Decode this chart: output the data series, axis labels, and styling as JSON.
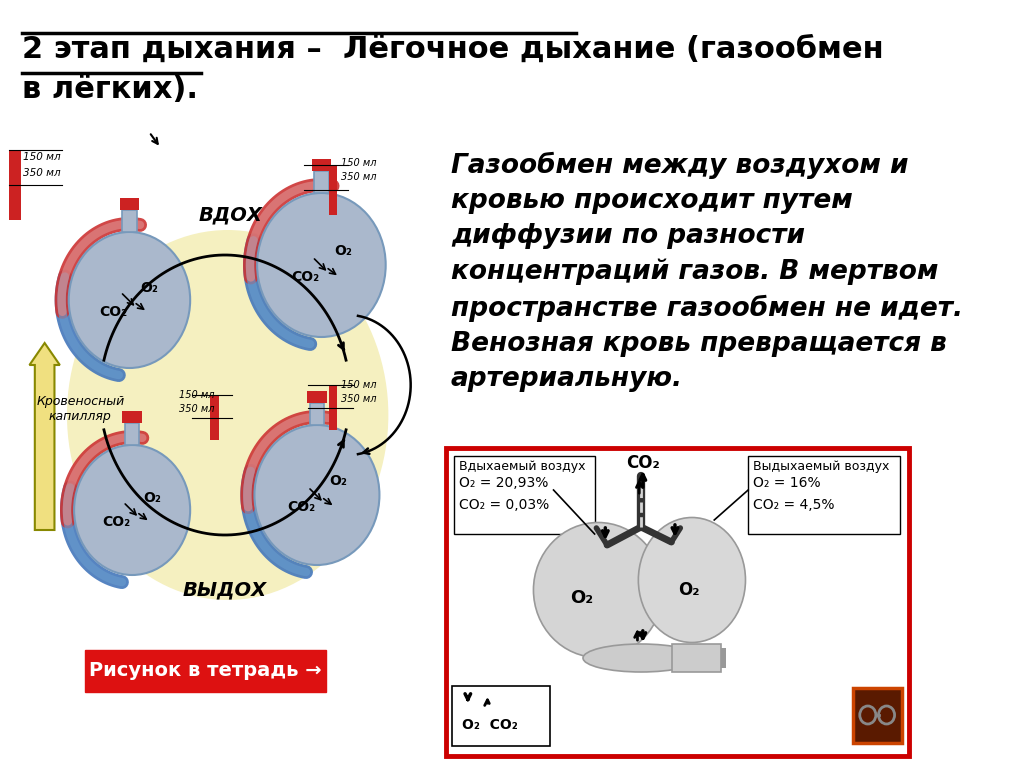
{
  "title_line1": "2 этап дыхания –  Лёгочное дыхание (газообмен",
  "title_line2": "в лёгких).",
  "bg_color": "#ffffff",
  "text_color": "#000000",
  "title_fontsize": 22,
  "body_text": "Газообмен между воздухом и\nкровью происходит путем\nдиффузии по разности\nконцентраций газов. В мертвом\nпространстве газообмен не идет.\nВенозная кровь превращается в\nартериальную.",
  "body_fontsize": 19,
  "inhale_label": "ВДОХ",
  "exhale_label": "ВЫДОХ",
  "capillary_label": "Кровеносный\nкапилляр",
  "button_text": "Рисунок в тетрадь →",
  "inhaled_air_label": "Вдыхаемый воздух",
  "inhaled_o2": "O₂ = 20,93%",
  "inhaled_co2": "CO₂ = 0,03%",
  "exhaled_air_label": "Выдыхаемый воздух",
  "exhaled_o2": "O₂ = 16%",
  "exhaled_co2": "CO₂ = 4,5%",
  "alveoli_color": "#aab8cc",
  "red_border": "#cc0000",
  "red_box_color": "#dd1111",
  "yellow_bg": "#f5f0c0",
  "blue_color": "#4477bb",
  "red_color": "#cc3333",
  "orange_red": "#dd2222",
  "dark_red_cap": "#cc2222"
}
